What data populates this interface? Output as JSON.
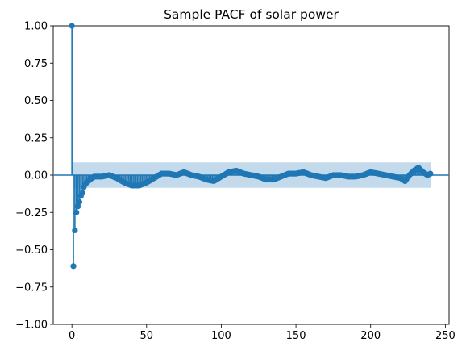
{
  "chart_data": {
    "type": "stem",
    "title": "Sample PACF of solar power",
    "xlabel": "",
    "ylabel": "",
    "xlim": [
      -12.5,
      252.5
    ],
    "ylim": [
      -1.0,
      1.0
    ],
    "x_ticks": [
      0,
      50,
      100,
      150,
      200,
      250
    ],
    "y_ticks": [
      -1.0,
      -0.75,
      -0.5,
      -0.25,
      0.0,
      0.25,
      0.5,
      0.75,
      1.0
    ],
    "x_tick_labels": [
      "0",
      "50",
      "100",
      "150",
      "200",
      "250"
    ],
    "y_tick_labels": [
      "−1.00",
      "−0.75",
      "−0.50",
      "−0.25",
      "0.00",
      "0.25",
      "0.50",
      "0.75",
      "1.00"
    ],
    "confidence_band": 0.085,
    "max_lag": 240,
    "grid": false,
    "colors": {
      "stem": "#1f77b4",
      "band": "#1f77b4",
      "band_alpha": 0.27
    },
    "anchor_points": [
      [
        0,
        1.0
      ],
      [
        1,
        -0.61
      ],
      [
        2,
        -0.37
      ],
      [
        3,
        -0.25
      ],
      [
        4,
        -0.21
      ],
      [
        5,
        -0.18
      ],
      [
        6,
        -0.14
      ],
      [
        7,
        -0.12
      ],
      [
        8,
        -0.08
      ],
      [
        9,
        -0.06
      ],
      [
        10,
        -0.05
      ],
      [
        12,
        -0.03
      ],
      [
        15,
        -0.01
      ],
      [
        20,
        -0.01
      ],
      [
        25,
        0.0
      ],
      [
        30,
        -0.02
      ],
      [
        35,
        -0.05
      ],
      [
        40,
        -0.07
      ],
      [
        45,
        -0.07
      ],
      [
        50,
        -0.05
      ],
      [
        55,
        -0.02
      ],
      [
        60,
        0.01
      ],
      [
        65,
        0.01
      ],
      [
        70,
        0.0
      ],
      [
        75,
        0.02
      ],
      [
        80,
        0.0
      ],
      [
        85,
        -0.01
      ],
      [
        90,
        -0.03
      ],
      [
        95,
        -0.04
      ],
      [
        100,
        -0.01
      ],
      [
        105,
        0.02
      ],
      [
        110,
        0.03
      ],
      [
        115,
        0.01
      ],
      [
        120,
        0.0
      ],
      [
        125,
        -0.01
      ],
      [
        130,
        -0.03
      ],
      [
        135,
        -0.03
      ],
      [
        140,
        -0.01
      ],
      [
        145,
        0.01
      ],
      [
        150,
        0.01
      ],
      [
        155,
        0.02
      ],
      [
        160,
        0.0
      ],
      [
        165,
        -0.01
      ],
      [
        170,
        -0.02
      ],
      [
        175,
        0.0
      ],
      [
        180,
        0.0
      ],
      [
        185,
        -0.01
      ],
      [
        190,
        -0.01
      ],
      [
        195,
        0.0
      ],
      [
        200,
        0.02
      ],
      [
        205,
        0.01
      ],
      [
        210,
        0.0
      ],
      [
        215,
        -0.01
      ],
      [
        220,
        -0.02
      ],
      [
        223,
        -0.04
      ],
      [
        226,
        0.0
      ],
      [
        229,
        0.03
      ],
      [
        232,
        0.05
      ],
      [
        235,
        0.02
      ],
      [
        238,
        0.0
      ],
      [
        240,
        0.01
      ]
    ]
  }
}
